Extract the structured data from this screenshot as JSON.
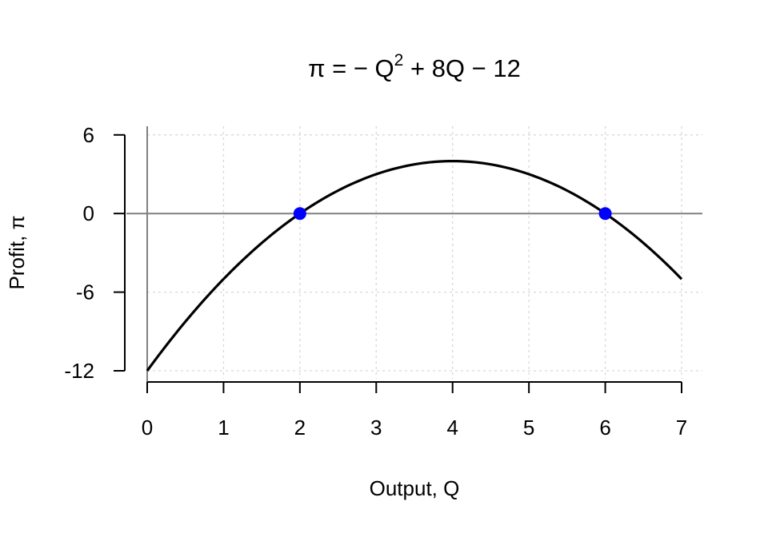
{
  "chart_data": {
    "type": "line",
    "title": {
      "prefix": "π = − Q",
      "superscript": "2",
      "suffix": " + 8Q − 12"
    },
    "xlabel": "Output, Q",
    "ylabel": "Profit, π",
    "xlim": [
      0,
      7
    ],
    "ylim": [
      -12,
      6
    ],
    "xticks": [
      0,
      1,
      2,
      3,
      4,
      5,
      6,
      7
    ],
    "xtick_labels": [
      "0",
      "1",
      "2",
      "3",
      "4",
      "5",
      "6",
      "7"
    ],
    "yticks": [
      -12,
      -6,
      0,
      6
    ],
    "ytick_labels": [
      "-12",
      "-6",
      "0",
      "6"
    ],
    "grid": true,
    "series": [
      {
        "function": "-Q^2 + 8Q - 12",
        "coefficients": {
          "a": -1,
          "b": 8,
          "c": -12
        },
        "domain": [
          0,
          7
        ],
        "color": "#000000"
      }
    ],
    "reference_lines": {
      "horizontal": 0,
      "vertical": 0,
      "color": "#808080"
    },
    "points": [
      {
        "x": 2,
        "y": 0,
        "color": "#0000ff"
      },
      {
        "x": 6,
        "y": 0,
        "color": "#0000ff"
      }
    ]
  }
}
